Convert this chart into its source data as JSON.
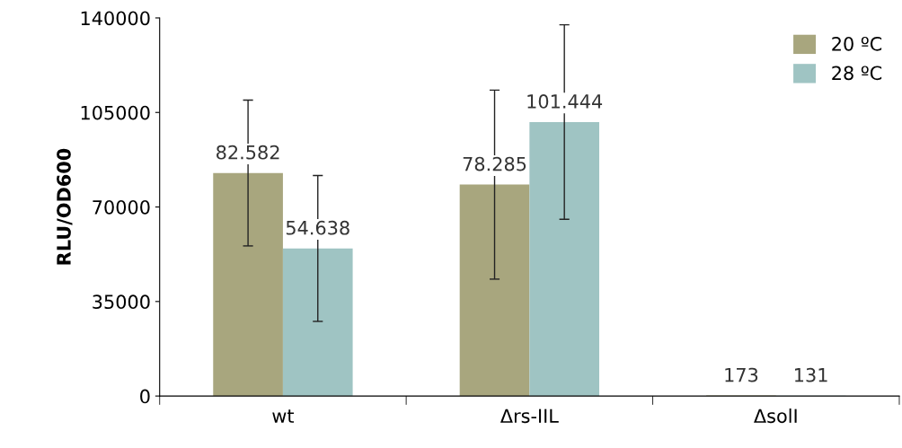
{
  "chart_data": {
    "type": "bar",
    "ylabel": "RLU/OD600",
    "categories": [
      "wt",
      "Δrs-IIL",
      "ΔsolI"
    ],
    "series": [
      {
        "name": "20 ºC",
        "color": "#a8a67e",
        "values": [
          82582,
          78285,
          173
        ],
        "value_labels": [
          "82.582",
          "78.285",
          "173"
        ],
        "errors": [
          27000,
          35000,
          null
        ]
      },
      {
        "name": "28 ºC",
        "color": "#9fc4c3",
        "values": [
          54638,
          101444,
          131
        ],
        "value_labels": [
          "54.638",
          "101.444",
          "131"
        ],
        "errors": [
          27000,
          36000,
          null
        ]
      }
    ],
    "ylim": [
      0,
      140000
    ],
    "yticks": [
      0,
      35000,
      70000,
      105000,
      140000
    ],
    "grid": false,
    "legend": "top right"
  }
}
